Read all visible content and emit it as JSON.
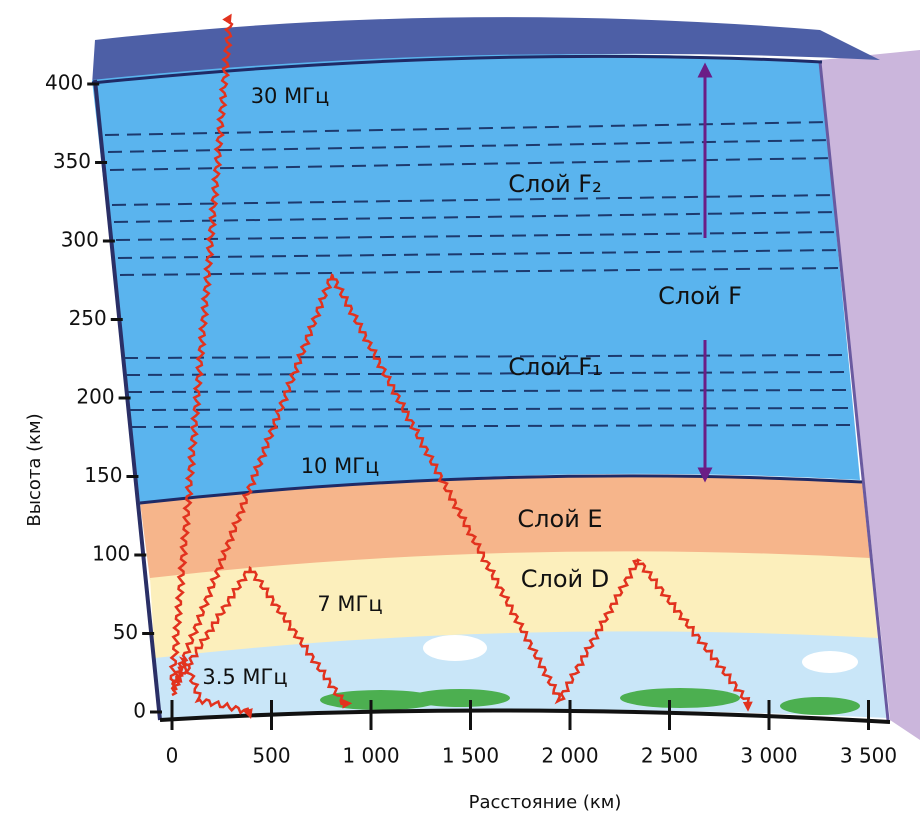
{
  "y_axis": {
    "label": "Высота (км)",
    "ticks": [
      "0",
      "50",
      "100",
      "150",
      "200",
      "250",
      "300",
      "350",
      "400"
    ]
  },
  "x_axis": {
    "label": "Расстояние (км)",
    "ticks": [
      "0",
      "500",
      "1 000",
      "1 500",
      "2 000",
      "2 500",
      "3 000",
      "3 500"
    ]
  },
  "layers": {
    "f2": "Слой F₂",
    "f": "Слой F",
    "f1": "Слой F₁",
    "e": "Слой E",
    "d": "Слой D"
  },
  "waves": {
    "w30": "30 МГц",
    "w10": "10 МГц",
    "w7": "7 МГц",
    "w35": "3.5 МГц"
  }
}
